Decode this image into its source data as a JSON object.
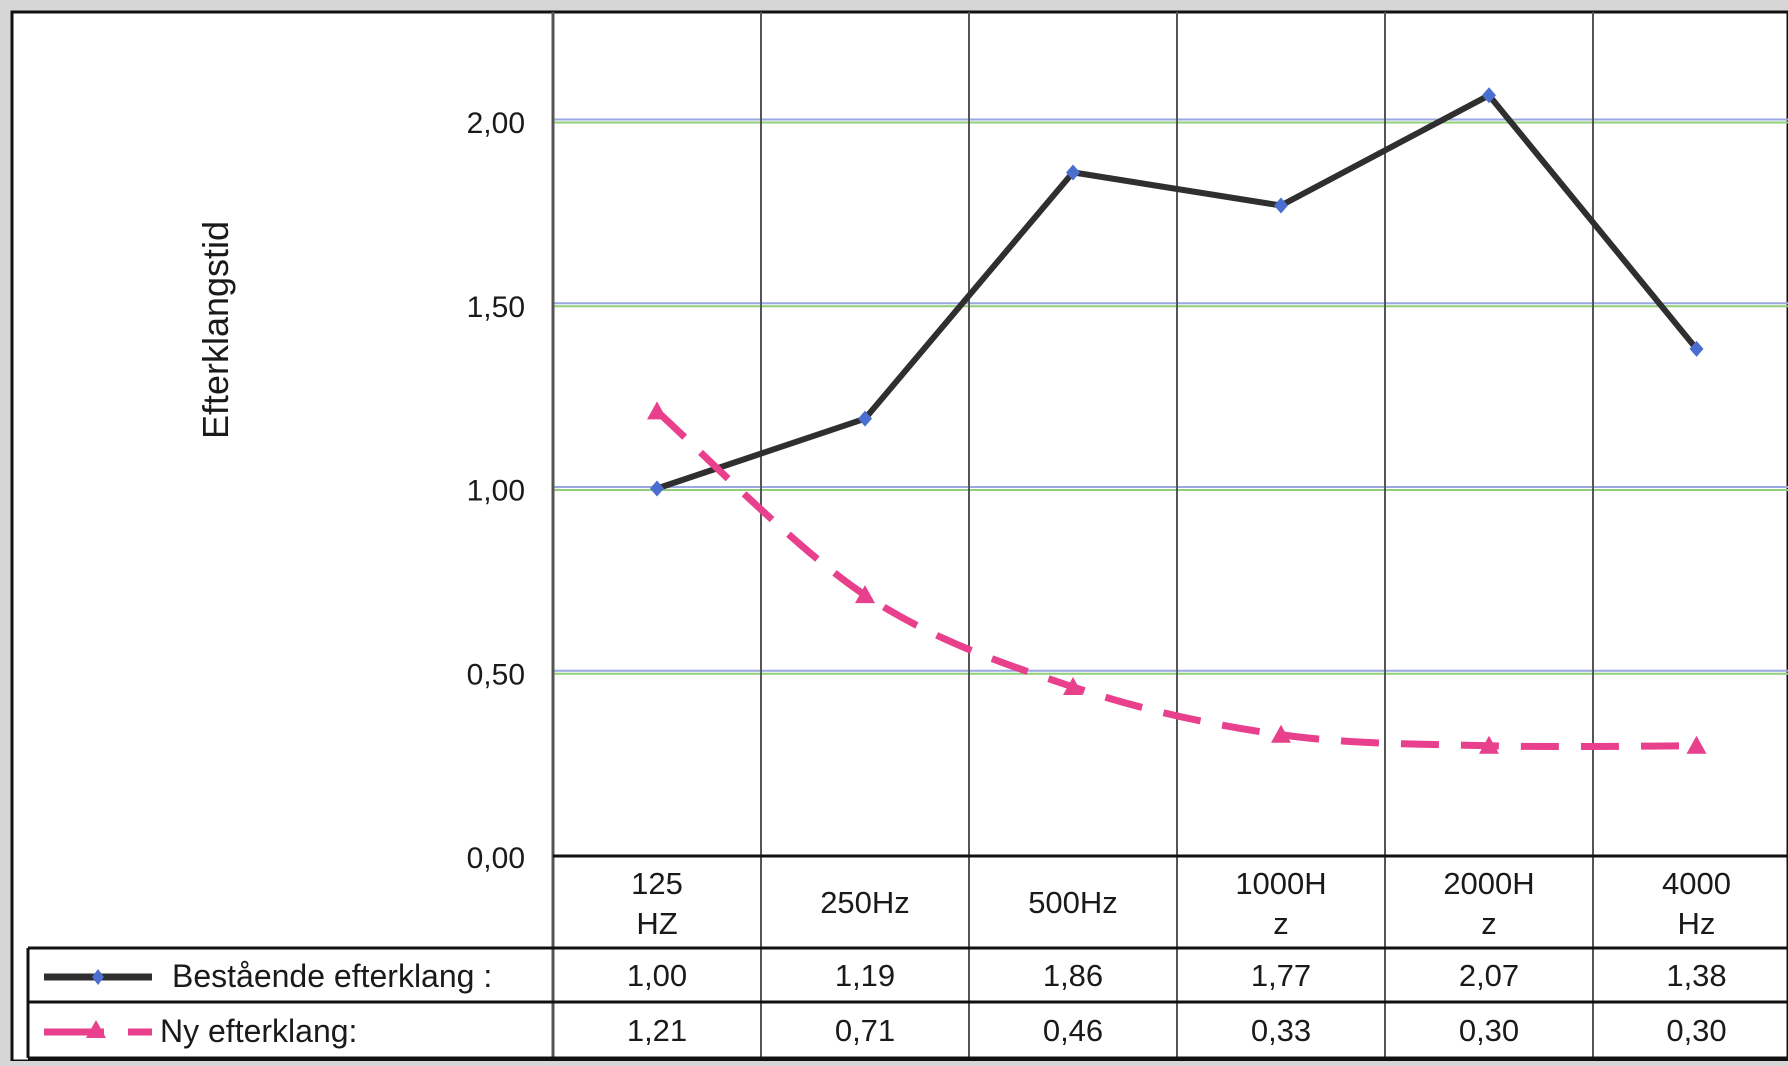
{
  "chart_data": {
    "type": "line",
    "title": "",
    "xlabel": "",
    "ylabel": "Efterklangstid",
    "ylim": [
      0,
      2.3
    ],
    "y_ticks": [
      "0,00",
      "0,50",
      "1,00",
      "1,50",
      "2,00"
    ],
    "y_tick_values": [
      0,
      0.5,
      1.0,
      1.5,
      2.0
    ],
    "grid": true,
    "gridline_colors": [
      "#9aa7e0",
      "#8fcf7a"
    ],
    "categories": [
      [
        "125",
        "HZ"
      ],
      [
        "250Hz"
      ],
      [
        "500Hz"
      ],
      [
        "1000H",
        "z"
      ],
      [
        "2000H",
        "z"
      ],
      [
        "4000",
        "Hz"
      ]
    ],
    "series": [
      {
        "name": "Bestående efterklang :",
        "values": [
          1.0,
          1.19,
          1.86,
          1.77,
          2.07,
          1.38
        ],
        "labels": [
          "1,00",
          "1,19",
          "1,86",
          "1,77",
          "2,07",
          "1,38"
        ],
        "color": "#2f2f2f",
        "marker_color": "#4a6fd0",
        "dashed": false
      },
      {
        "name": "Ny efterklang:",
        "values": [
          1.21,
          0.71,
          0.46,
          0.33,
          0.3,
          0.3
        ],
        "labels": [
          "1,21",
          "0,71",
          "0,46",
          "0,33",
          "0,30",
          "0,30"
        ],
        "color": "#e8408c",
        "marker_color": "#e8408c",
        "dashed": true
      }
    ]
  }
}
